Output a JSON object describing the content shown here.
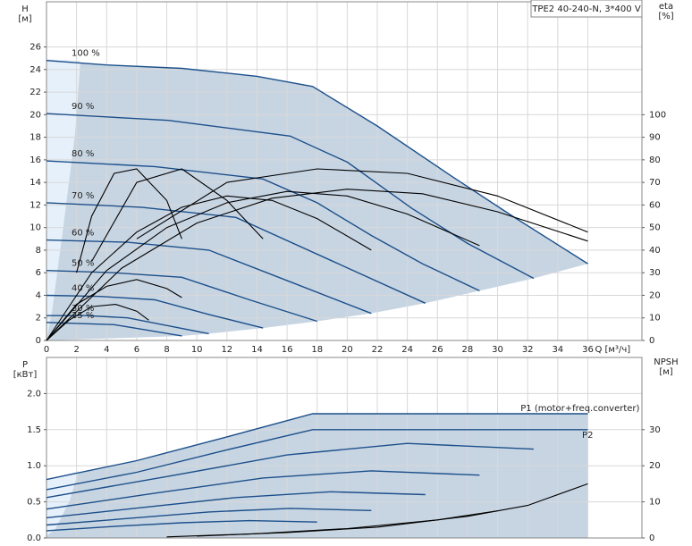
{
  "chart_data": [
    {
      "type": "line",
      "title": "TPE2 40-240-N, 3*400 V",
      "xlabel": "Q [м³/ч]",
      "ylabel": "H",
      "yunit": "[м]",
      "y2label": "eta",
      "y2unit": "[%]",
      "xlim": [
        0,
        39.6
      ],
      "xticks": [
        0,
        2,
        4,
        6,
        8,
        10,
        12,
        14,
        16,
        18,
        20,
        22,
        24,
        26,
        28,
        30,
        32,
        34,
        36
      ],
      "ylim": [
        0,
        30
      ],
      "yticks": [
        0,
        2,
        4,
        6,
        8,
        10,
        12,
        14,
        16,
        18,
        20,
        22,
        24,
        26
      ],
      "y2lim": [
        0,
        150
      ],
      "y2ticks": [
        0,
        10,
        20,
        30,
        40,
        50,
        60,
        70,
        80,
        90,
        100
      ],
      "grid": true,
      "series": [
        {
          "name": "100 %",
          "color": "#1c4f8a",
          "x": [
            0,
            4,
            9,
            14,
            17.7,
            22,
            27,
            31,
            36
          ],
          "values": [
            24.8,
            24.4,
            24.1,
            23.4,
            22.5,
            19,
            14.5,
            11,
            6.8
          ]
        },
        {
          "name": "90 %",
          "color": "#1c4f8a",
          "x": [
            0,
            8.1,
            16.2,
            20,
            24.3,
            28,
            32.4
          ],
          "values": [
            20.1,
            19.5,
            18.1,
            15.8,
            11.7,
            8.6,
            5.5
          ]
        },
        {
          "name": "80 %",
          "color": "#1c4f8a",
          "x": [
            0,
            7.2,
            14.4,
            18,
            21.6,
            25,
            28.8
          ],
          "values": [
            15.9,
            15.4,
            14.3,
            12.2,
            9.3,
            6.8,
            4.4
          ]
        },
        {
          "name": "70 %",
          "color": "#1c4f8a",
          "x": [
            0,
            6.3,
            12.6,
            18.9,
            25.2
          ],
          "values": [
            12.2,
            11.8,
            10.9,
            7.1,
            3.3
          ]
        },
        {
          "name": "60 %",
          "color": "#1c4f8a",
          "x": [
            0,
            5.4,
            10.8,
            16.2,
            21.6
          ],
          "values": [
            8.9,
            8.7,
            8.0,
            5.2,
            2.4
          ]
        },
        {
          "name": "50 %",
          "color": "#1c4f8a",
          "x": [
            0,
            4.5,
            9,
            13.5,
            18
          ],
          "values": [
            6.2,
            6.0,
            5.6,
            3.6,
            1.7
          ]
        },
        {
          "name": "40 %",
          "color": "#1c4f8a",
          "x": [
            0,
            3.6,
            7.2,
            10.8,
            14.4
          ],
          "values": [
            4.0,
            3.9,
            3.6,
            2.3,
            1.1
          ]
        },
        {
          "name": "30 %",
          "color": "#1c4f8a",
          "x": [
            0,
            2.7,
            5.4,
            8.1,
            10.8
          ],
          "values": [
            2.2,
            2.2,
            2.0,
            1.3,
            0.6
          ]
        },
        {
          "name": "25 %",
          "color": "#1c4f8a",
          "x": [
            0,
            2.25,
            4.5,
            6.75,
            9
          ],
          "values": [
            1.6,
            1.5,
            1.4,
            0.9,
            0.4
          ]
        },
        {
          "axis": "y2",
          "color": "#000000",
          "x": [
            0,
            5,
            10,
            15,
            20,
            25,
            30,
            36
          ],
          "values": [
            0,
            32,
            52,
            63,
            67,
            65,
            57,
            44
          ]
        },
        {
          "axis": "y2",
          "color": "#000000",
          "x": [
            0,
            4,
            8,
            12,
            16,
            20,
            24,
            28.8
          ],
          "values": [
            0,
            31,
            50,
            61,
            66,
            64,
            56,
            42
          ]
        },
        {
          "axis": "y2",
          "color": "#000000",
          "x": [
            0,
            3,
            6,
            9,
            12,
            15,
            18,
            21.6
          ],
          "values": [
            0,
            30,
            48,
            59,
            64,
            62,
            54,
            40
          ]
        },
        {
          "axis": "y2",
          "color": "#000000",
          "x": [
            0,
            2,
            4,
            6,
            8,
            9
          ],
          "values": [
            0,
            16,
            24,
            27,
            23,
            19
          ]
        },
        {
          "axis": "y2",
          "color": "#000000",
          "x": [
            0,
            1.5,
            3,
            4.6,
            6,
            6.8
          ],
          "values": [
            0,
            9,
            15,
            16,
            13,
            9
          ]
        },
        {
          "axis": "y2",
          "color": "#000000",
          "x": [
            2,
            3,
            4.5,
            6,
            8,
            9
          ],
          "values": [
            30,
            55,
            74,
            76,
            62,
            45
          ]
        },
        {
          "axis": "y2",
          "color": "#000000",
          "x": [
            3,
            6,
            9,
            12,
            14.4
          ],
          "values": [
            35,
            70,
            76,
            62,
            45
          ]
        },
        {
          "axis": "y2",
          "color": "#000000",
          "x": [
            6,
            12,
            18,
            24,
            30,
            36
          ],
          "values": [
            45,
            70,
            76,
            74,
            64,
            48
          ]
        }
      ]
    },
    {
      "type": "line",
      "ylabel": "P",
      "yunit": "[кВт]",
      "y2label": "NPSH",
      "y2unit": "[м]",
      "xlim": [
        0,
        39.6
      ],
      "ylim": [
        0,
        2.5
      ],
      "yticks": [
        {
          "value": 0,
          "label": "0.0"
        },
        0.5,
        {
          "value": 1,
          "label": "1.0"
        },
        1.5,
        {
          "value": 2,
          "label": "2.0"
        }
      ],
      "y2lim": [
        0,
        50
      ],
      "y2ticks": [
        0,
        10,
        20,
        30
      ],
      "grid": true,
      "series": [
        {
          "name": "P1 (motor+freq.converter)",
          "color": "#1c4f8a",
          "x": [
            0,
            6,
            12,
            17.7,
            24,
            30,
            36
          ],
          "values": [
            0.81,
            1.07,
            1.4,
            1.72,
            1.72,
            1.72,
            1.72
          ]
        },
        {
          "name": "P2",
          "color": "#1c4f8a",
          "x": [
            0,
            6,
            12,
            17.7,
            24,
            30,
            36
          ],
          "values": [
            0.67,
            0.91,
            1.22,
            1.5,
            1.5,
            1.5,
            1.5
          ]
        },
        {
          "color": "#1c4f8a",
          "x": [
            0,
            8,
            16,
            24,
            32.4
          ],
          "values": [
            0.56,
            0.85,
            1.15,
            1.31,
            1.23
          ]
        },
        {
          "color": "#1c4f8a",
          "x": [
            0,
            7.2,
            14.4,
            21.6,
            28.8
          ],
          "values": [
            0.4,
            0.62,
            0.83,
            0.93,
            0.87
          ]
        },
        {
          "color": "#1c4f8a",
          "x": [
            0,
            6.3,
            12.6,
            18.9,
            25.2
          ],
          "values": [
            0.28,
            0.42,
            0.56,
            0.64,
            0.6
          ]
        },
        {
          "color": "#1c4f8a",
          "x": [
            0,
            5.4,
            10.8,
            16.2,
            21.6
          ],
          "values": [
            0.18,
            0.27,
            0.36,
            0.41,
            0.38
          ]
        },
        {
          "color": "#1c4f8a",
          "x": [
            0,
            4.5,
            9,
            13.5,
            18
          ],
          "values": [
            0.1,
            0.16,
            0.21,
            0.24,
            0.22
          ]
        },
        {
          "axis": "y2",
          "color": "#000000",
          "x": [
            10,
            16,
            22,
            28,
            32,
            36
          ],
          "values": [
            0.5,
            1.5,
            3,
            6,
            9,
            15
          ]
        },
        {
          "axis": "y2",
          "color": "#000000",
          "x": [
            8,
            14,
            20,
            26,
            30
          ],
          "values": [
            0.3,
            1.2,
            2.6,
            5,
            7.5
          ]
        }
      ]
    }
  ]
}
